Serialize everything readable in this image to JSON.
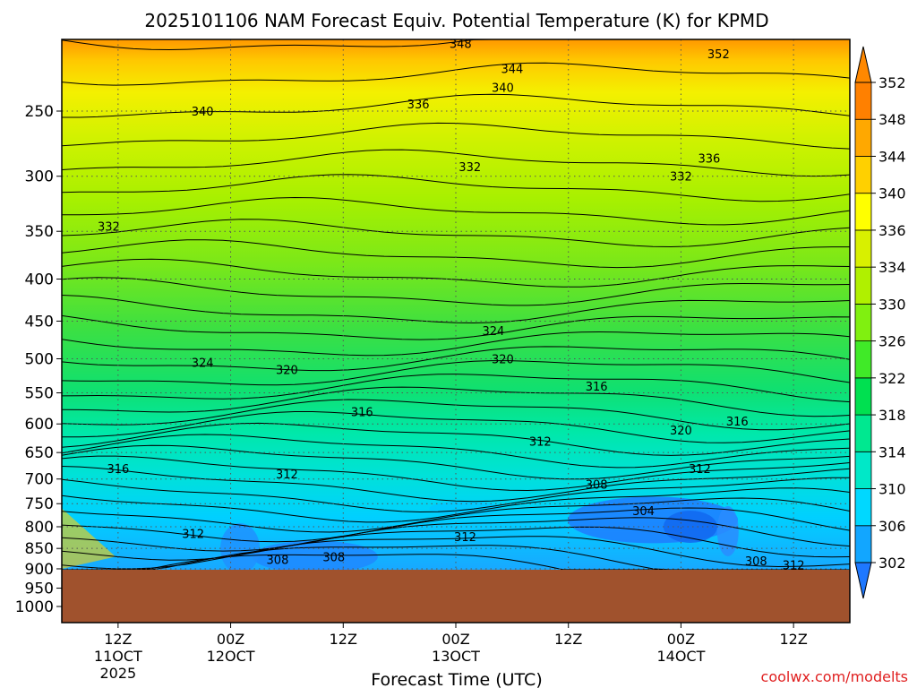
{
  "chart_data": {
    "type": "heatmap",
    "title": "2025101106 NAM Forecast Equiv. Potential Temperature (K) for KPMD",
    "xlabel": "Forecast Time (UTC)",
    "ylabel": "",
    "watermark": "coolwx.com/modelts",
    "y_scale": "log",
    "y_reversed": true,
    "ylim": [
      1000,
      200
    ],
    "y_ticks": [
      250,
      300,
      350,
      400,
      450,
      500,
      550,
      600,
      650,
      700,
      750,
      800,
      850,
      900,
      950,
      1000
    ],
    "xlim": [
      "2025-10-11T06:00Z",
      "2025-10-14T18:00Z"
    ],
    "x_ticks": [
      {
        "time": "2025-10-11T12:00Z",
        "lines": [
          "12Z",
          "11OCT",
          "2025"
        ]
      },
      {
        "time": "2025-10-12T00:00Z",
        "lines": [
          "00Z",
          "12OCT"
        ]
      },
      {
        "time": "2025-10-12T12:00Z",
        "lines": [
          "12Z"
        ]
      },
      {
        "time": "2025-10-13T00:00Z",
        "lines": [
          "00Z",
          "13OCT"
        ]
      },
      {
        "time": "2025-10-13T12:00Z",
        "lines": [
          "12Z"
        ]
      },
      {
        "time": "2025-10-14T00:00Z",
        "lines": [
          "00Z",
          "14OCT"
        ]
      },
      {
        "time": "2025-10-14T12:00Z",
        "lines": [
          "12Z"
        ]
      }
    ],
    "grid": true,
    "colorbar": {
      "position": "right",
      "levels": [
        302,
        306,
        310,
        314,
        318,
        322,
        326,
        330,
        334,
        336,
        340,
        344,
        348,
        352
      ],
      "colors": [
        "#1e78ff",
        "#12a6ff",
        "#00d8ff",
        "#00e8c8",
        "#00e890",
        "#00e050",
        "#40ea28",
        "#80f010",
        "#b0f000",
        "#d8f000",
        "#ffff00",
        "#ffd000",
        "#ffa800",
        "#ff8000",
        "#ff8800"
      ]
    },
    "contour_labels": [
      {
        "value": "348",
        "time": "2025-10-13T00:30Z",
        "pressure": 207
      },
      {
        "value": "352",
        "time": "2025-10-14T04:00Z",
        "pressure": 213
      },
      {
        "value": "344",
        "time": "2025-10-13T06:00Z",
        "pressure": 222
      },
      {
        "value": "340",
        "time": "2025-10-13T05:00Z",
        "pressure": 234
      },
      {
        "value": "336",
        "time": "2025-10-12T20:00Z",
        "pressure": 245
      },
      {
        "value": "340",
        "time": "2025-10-11T21:00Z",
        "pressure": 250
      },
      {
        "value": "336",
        "time": "2025-10-14T03:00Z",
        "pressure": 285
      },
      {
        "value": "332",
        "time": "2025-10-13T01:30Z",
        "pressure": 292
      },
      {
        "value": "332",
        "time": "2025-10-14T00:00Z",
        "pressure": 300
      },
      {
        "value": "332",
        "time": "2025-10-11T11:00Z",
        "pressure": 345
      },
      {
        "value": "324",
        "time": "2025-10-13T04:00Z",
        "pressure": 462
      },
      {
        "value": "324",
        "time": "2025-10-11T21:00Z",
        "pressure": 505
      },
      {
        "value": "320",
        "time": "2025-10-12T06:00Z",
        "pressure": 515
      },
      {
        "value": "320",
        "time": "2025-10-13T05:00Z",
        "pressure": 500
      },
      {
        "value": "316",
        "time": "2025-10-13T15:00Z",
        "pressure": 540
      },
      {
        "value": "316",
        "time": "2025-10-12T14:00Z",
        "pressure": 580
      },
      {
        "value": "320",
        "time": "2025-10-14T00:00Z",
        "pressure": 610
      },
      {
        "value": "316",
        "time": "2025-10-14T06:00Z",
        "pressure": 595
      },
      {
        "value": "312",
        "time": "2025-10-13T09:00Z",
        "pressure": 630
      },
      {
        "value": "316",
        "time": "2025-10-11T12:00Z",
        "pressure": 680
      },
      {
        "value": "312",
        "time": "2025-10-12T06:00Z",
        "pressure": 690
      },
      {
        "value": "308",
        "time": "2025-10-13T15:00Z",
        "pressure": 710
      },
      {
        "value": "312",
        "time": "2025-10-14T02:00Z",
        "pressure": 680
      },
      {
        "value": "304",
        "time": "2025-10-13T20:00Z",
        "pressure": 765
      },
      {
        "value": "312",
        "time": "2025-10-11T20:00Z",
        "pressure": 815
      },
      {
        "value": "312",
        "time": "2025-10-13T01:00Z",
        "pressure": 822
      },
      {
        "value": "308",
        "time": "2025-10-12T05:00Z",
        "pressure": 877
      },
      {
        "value": "308",
        "time": "2025-10-12T11:00Z",
        "pressure": 870
      },
      {
        "value": "308",
        "time": "2025-10-14T08:00Z",
        "pressure": 880
      },
      {
        "value": "312",
        "time": "2025-10-14T12:00Z",
        "pressure": 890
      }
    ],
    "terrain_surface_pressure": 912
  }
}
